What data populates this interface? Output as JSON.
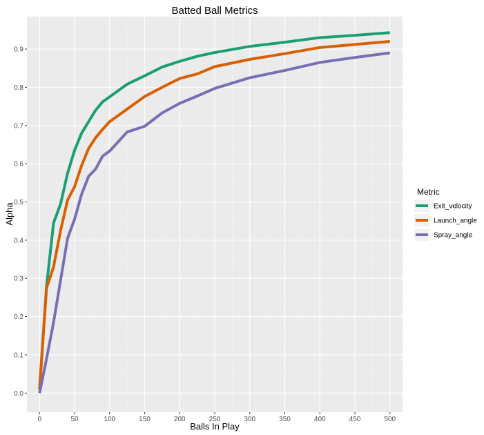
{
  "chart_data": {
    "type": "line",
    "title": "Batted Ball Metrics",
    "xlabel": "Balls In Play",
    "ylabel": "Alpha",
    "xlim": [
      -18,
      518
    ],
    "ylim": [
      -0.05,
      0.985
    ],
    "x_ticks": [
      0,
      50,
      100,
      150,
      200,
      250,
      300,
      350,
      400,
      450,
      500
    ],
    "y_ticks": [
      0.0,
      0.1,
      0.2,
      0.3,
      0.4,
      0.5,
      0.6,
      0.7,
      0.8,
      0.9
    ],
    "grid": true,
    "legend": {
      "title": "Metric",
      "position": "right"
    },
    "series": [
      {
        "name": "Exit_velocity",
        "color": "#1b9e77",
        "x": [
          0,
          10,
          20,
          30,
          40,
          50,
          60,
          70,
          80,
          90,
          100,
          125,
          150,
          175,
          200,
          225,
          250,
          300,
          350,
          400,
          450,
          500
        ],
        "y": [
          0.01,
          0.28,
          0.445,
          0.495,
          0.575,
          0.635,
          0.68,
          0.71,
          0.74,
          0.762,
          0.775,
          0.808,
          0.83,
          0.853,
          0.868,
          0.881,
          0.891,
          0.907,
          0.918,
          0.93,
          0.936,
          0.943
        ]
      },
      {
        "name": "Launch_angle",
        "color": "#d95f02",
        "x": [
          0,
          10,
          20,
          30,
          40,
          50,
          60,
          70,
          80,
          90,
          100,
          125,
          150,
          175,
          200,
          225,
          250,
          300,
          350,
          400,
          450,
          500
        ],
        "y": [
          0.01,
          0.275,
          0.33,
          0.425,
          0.505,
          0.54,
          0.595,
          0.64,
          0.668,
          0.69,
          0.71,
          0.743,
          0.776,
          0.8,
          0.823,
          0.835,
          0.854,
          0.873,
          0.888,
          0.904,
          0.912,
          0.92
        ]
      },
      {
        "name": "Spray_angle",
        "color": "#7570b3",
        "x": [
          0,
          10,
          20,
          30,
          40,
          50,
          60,
          70,
          80,
          90,
          100,
          125,
          150,
          175,
          200,
          225,
          250,
          300,
          350,
          400,
          450,
          500
        ],
        "y": [
          0.0,
          0.09,
          0.185,
          0.295,
          0.405,
          0.455,
          0.52,
          0.567,
          0.586,
          0.62,
          0.633,
          0.683,
          0.698,
          0.733,
          0.758,
          0.777,
          0.797,
          0.825,
          0.844,
          0.865,
          0.878,
          0.89
        ]
      }
    ]
  },
  "colors": {
    "panel_background": "#ebebeb",
    "grid_major": "#ffffff",
    "grid_minor": "#f2f2f2"
  }
}
